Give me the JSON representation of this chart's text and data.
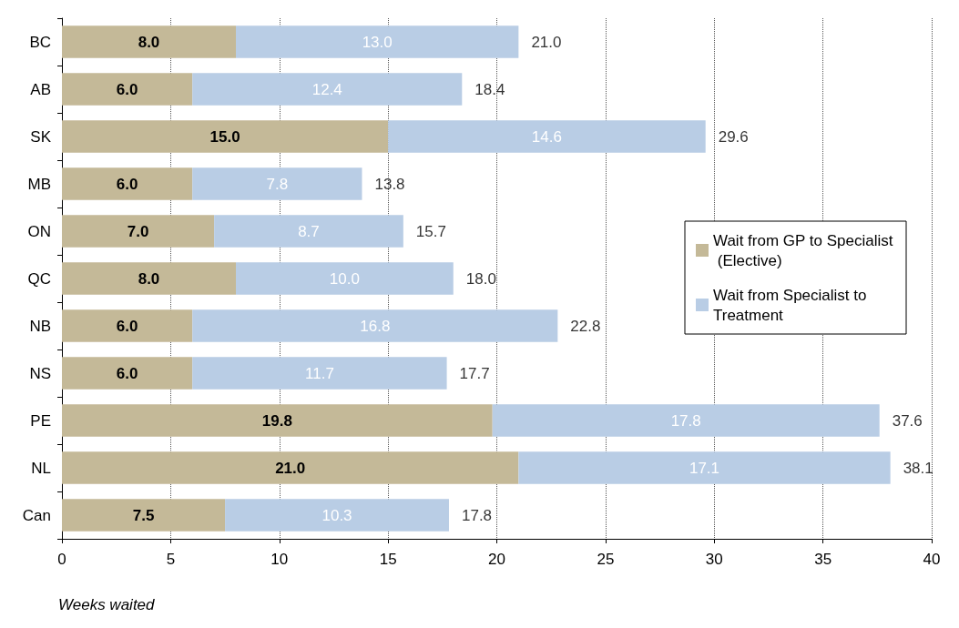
{
  "chart_data": {
    "type": "bar",
    "orientation": "horizontal",
    "stacked": true,
    "xlabel": "Weeks waited",
    "categories": [
      "BC",
      "AB",
      "SK",
      "MB",
      "ON",
      "QC",
      "NB",
      "NS",
      "PE",
      "NL",
      "Can"
    ],
    "series": [
      {
        "name": "Wait from GP to Specialist (Elective)",
        "color": "#c4b998",
        "values": [
          8,
          6,
          15,
          6,
          7,
          8,
          6,
          6,
          19.8,
          21,
          7.5
        ],
        "value_labels": [
          "8.0",
          "6.0",
          "15.0",
          "6.0",
          "7.0",
          "8.0",
          "6.0",
          "6.0",
          "19.8",
          "21.0",
          "7.5"
        ]
      },
      {
        "name": "Wait from Specialist to Treatment",
        "color": "#b9cde5",
        "values": [
          13,
          12.4,
          14.6,
          7.8,
          8.7,
          10,
          16.8,
          11.7,
          17.8,
          17.1,
          10.3
        ],
        "value_labels": [
          "13.0",
          "12.4",
          "14.6",
          "7.8",
          "8.7",
          "10.0",
          "16.8",
          "11.7",
          "17.8",
          "17.1",
          "10.3"
        ]
      }
    ],
    "totals": [
      "21.0",
      "18.4",
      "29.6",
      "13.8",
      "15.7",
      "18.0",
      "22.8",
      "17.7",
      "37.6",
      "38.1",
      "17.8"
    ],
    "xlim": [
      0,
      40
    ],
    "xticks": [
      0,
      5,
      10,
      15,
      20,
      25,
      30,
      35,
      40
    ],
    "grid": "x",
    "legend": "right"
  }
}
